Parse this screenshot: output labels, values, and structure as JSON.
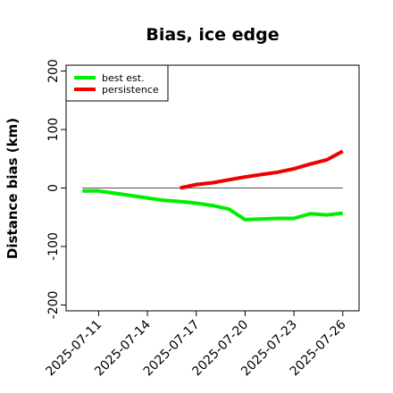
{
  "chart_data": {
    "type": "line",
    "title": "Bias, ice edge",
    "xlabel": "",
    "ylabel": "Distance bias (km)",
    "ylim": [
      -210,
      210
    ],
    "yticks": [
      -200,
      -100,
      0,
      100,
      200
    ],
    "ytick_labels": [
      "-200",
      "-100",
      "0",
      "100",
      "200"
    ],
    "xticks": [
      "2025-07-11",
      "2025-07-14",
      "2025-07-17",
      "2025-07-20",
      "2025-07-23",
      "2025-07-26"
    ],
    "x_start": "2025-07-09",
    "x_end": "2025-07-27",
    "reference_line": 0,
    "legend_position": "top-left",
    "series": [
      {
        "name": "best est.",
        "color": "#00ee00",
        "points": [
          [
            "2025-07-10",
            -5
          ],
          [
            "2025-07-11",
            -5
          ],
          [
            "2025-07-12",
            -9
          ],
          [
            "2025-07-13",
            -13
          ],
          [
            "2025-07-14",
            -17
          ],
          [
            "2025-07-15",
            -21
          ],
          [
            "2025-07-16",
            -23
          ],
          [
            "2025-07-17",
            -26
          ],
          [
            "2025-07-18",
            -30
          ],
          [
            "2025-07-19",
            -36
          ],
          [
            "2025-07-20",
            -54
          ],
          [
            "2025-07-21",
            -53
          ],
          [
            "2025-07-22",
            -52
          ],
          [
            "2025-07-23",
            -52
          ],
          [
            "2025-07-24",
            -44
          ],
          [
            "2025-07-25",
            -46
          ],
          [
            "2025-07-26",
            -43
          ]
        ]
      },
      {
        "name": "persistence",
        "color": "#ee0000",
        "points": [
          [
            "2025-07-16",
            0
          ],
          [
            "2025-07-17",
            6
          ],
          [
            "2025-07-18",
            9
          ],
          [
            "2025-07-19",
            14
          ],
          [
            "2025-07-20",
            19
          ],
          [
            "2025-07-21",
            23
          ],
          [
            "2025-07-22",
            27
          ],
          [
            "2025-07-23",
            33
          ],
          [
            "2025-07-24",
            41
          ],
          [
            "2025-07-25",
            48
          ],
          [
            "2025-07-26",
            63
          ]
        ]
      }
    ]
  }
}
